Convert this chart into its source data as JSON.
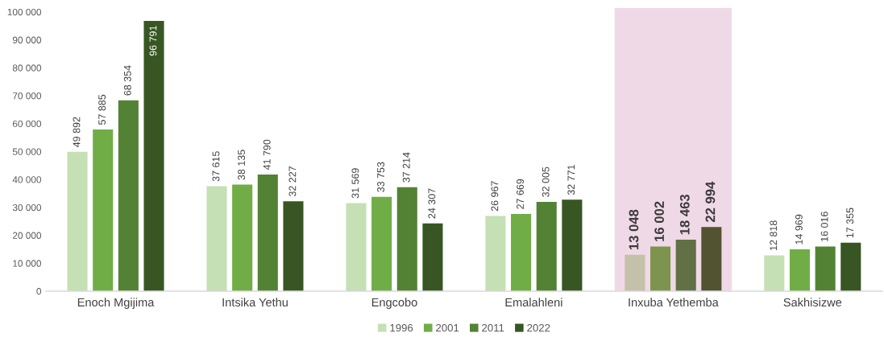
{
  "chart_data": {
    "type": "bar",
    "categories": [
      "Enoch Mgijima",
      "Intsika Yethu",
      "Engcobo",
      "Emalahleni",
      "Inxuba Yethemba",
      "Sakhisizwe"
    ],
    "series": [
      {
        "name": "1996",
        "color": "#c5e0b4",
        "colors": [
          "#c5e0b4",
          "#c5e0b4",
          "#c5e0b4",
          "#c5e0b4",
          "#c3c1a9",
          "#c5e0b4"
        ],
        "values": [
          49892,
          37615,
          31569,
          26967,
          13048,
          12818
        ],
        "value_labels": [
          "49 892",
          "37 615",
          "31 569",
          "26 967",
          "13 048",
          "12 818"
        ]
      },
      {
        "name": "2001",
        "color": "#70ad47",
        "colors": [
          "#70ad47",
          "#70ad47",
          "#70ad47",
          "#70ad47",
          "#7d944f",
          "#70ad47"
        ],
        "values": [
          57885,
          38135,
          33753,
          27669,
          16002,
          14969
        ],
        "value_labels": [
          "57 885",
          "38 135",
          "33 753",
          "27 669",
          "16 002",
          "14 969"
        ]
      },
      {
        "name": "2011",
        "color": "#548235",
        "colors": [
          "#548235",
          "#548235",
          "#548235",
          "#548235",
          "#627145",
          "#548235"
        ],
        "values": [
          68354,
          41790,
          37214,
          32005,
          18463,
          16016
        ],
        "value_labels": [
          "68 354",
          "41 790",
          "37 214",
          "32 005",
          "18 463",
          "16 016"
        ]
      },
      {
        "name": "2022",
        "color": "#375623",
        "colors": [
          "#375623",
          "#375623",
          "#375623",
          "#375623",
          "#525330",
          "#375623"
        ],
        "values": [
          96791,
          32227,
          24307,
          32771,
          22994,
          17355
        ],
        "value_labels": [
          "96 791",
          "32 227",
          "24 307",
          "32 771",
          "22 994",
          "17 355"
        ]
      }
    ],
    "ylim": [
      0,
      101500
    ],
    "yticks": [
      0,
      {
        "value": 10000,
        "label": "10 000"
      },
      {
        "value": 20000,
        "label": "20 000"
      },
      {
        "value": 30000,
        "label": "30 000"
      },
      {
        "value": 40000,
        "label": "40 000"
      },
      {
        "value": 50000,
        "label": "50 000"
      },
      {
        "value": 60000,
        "label": "60 000"
      },
      {
        "value": 70000,
        "label": "70 000"
      },
      {
        "value": 80000,
        "label": "80 000"
      },
      {
        "value": 90000,
        "label": "90 000"
      },
      {
        "value": 100000,
        "label": "100 000"
      }
    ],
    "bands": [
      {
        "axis": "x",
        "from": "Inxuba Yethemba",
        "to": "Inxuba Yethemba",
        "color": "#f0d9e7"
      }
    ],
    "grid": false,
    "legend": "bottom"
  }
}
